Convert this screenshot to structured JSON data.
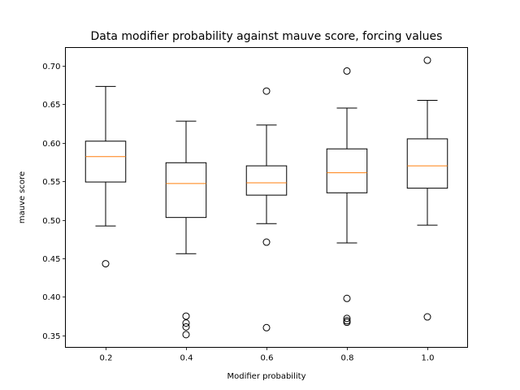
{
  "chart_data": {
    "type": "box",
    "title": "Data modifier probability against mauve score, forcing values",
    "xlabel": "Modifier probability",
    "ylabel": "mauve score",
    "categories": [
      "0.2",
      "0.4",
      "0.6",
      "0.8",
      "1.0"
    ],
    "ylim": [
      0.3345,
      0.7235
    ],
    "yticks": [
      0.35,
      0.4,
      0.45,
      0.5,
      0.55,
      0.6,
      0.65,
      0.7
    ],
    "ytick_labels": [
      "0.35",
      "0.40",
      "0.45",
      "0.50",
      "0.55",
      "0.60",
      "0.65",
      "0.70"
    ],
    "boxes": [
      {
        "category": "0.2",
        "whisker_low": 0.492,
        "q1": 0.549,
        "median": 0.582,
        "q3": 0.602,
        "whisker_high": 0.673,
        "fliers": [
          0.443
        ]
      },
      {
        "category": "0.4",
        "whisker_low": 0.456,
        "q1": 0.503,
        "median": 0.547,
        "q3": 0.574,
        "whisker_high": 0.628,
        "fliers": [
          0.375,
          0.366,
          0.361,
          0.351
        ]
      },
      {
        "category": "0.6",
        "whisker_low": 0.495,
        "q1": 0.532,
        "median": 0.548,
        "q3": 0.57,
        "whisker_high": 0.623,
        "fliers": [
          0.667,
          0.471,
          0.36
        ]
      },
      {
        "category": "0.8",
        "whisker_low": 0.47,
        "q1": 0.535,
        "median": 0.561,
        "q3": 0.592,
        "whisker_high": 0.645,
        "fliers": [
          0.693,
          0.398,
          0.372,
          0.369,
          0.367
        ]
      },
      {
        "category": "1.0",
        "whisker_low": 0.493,
        "q1": 0.541,
        "median": 0.57,
        "q3": 0.605,
        "whisker_high": 0.655,
        "fliers": [
          0.707,
          0.374
        ]
      }
    ],
    "grid": false,
    "legend": "none",
    "colors": {
      "box": "#000000",
      "median": "#ff7f0e",
      "flier": "#000000",
      "background": "#ffffff"
    }
  }
}
